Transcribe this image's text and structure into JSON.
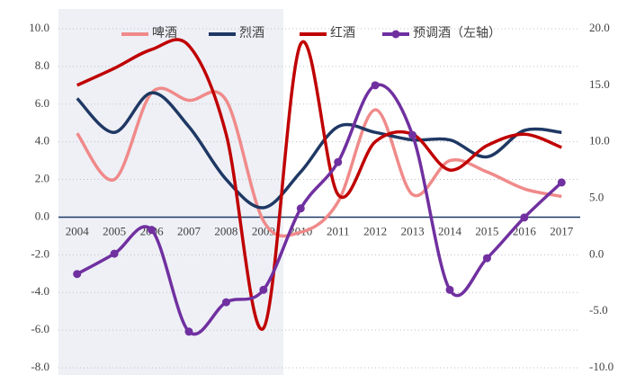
{
  "chart_data": {
    "type": "line",
    "categories": [
      "2004",
      "2005",
      "2006",
      "2007",
      "2008",
      "2009",
      "2010",
      "2011",
      "2012",
      "2013",
      "2014",
      "2015",
      "2016",
      "2017"
    ],
    "series": [
      {
        "name": "啤酒",
        "color": "#f08a8a",
        "values": [
          4.45,
          2.0,
          6.6,
          6.2,
          6.2,
          -0.2,
          -0.8,
          0.8,
          5.7,
          1.2,
          3.0,
          2.4,
          1.5,
          1.1
        ]
      },
      {
        "name": "烈酒",
        "color": "#1f3864",
        "values": [
          6.3,
          4.5,
          6.6,
          4.8,
          2.0,
          0.5,
          2.4,
          4.8,
          4.5,
          4.1,
          4.1,
          3.2,
          4.6,
          4.5
        ]
      },
      {
        "name": "红酒",
        "color": "#c00000",
        "values": [
          7.0,
          7.9,
          8.9,
          9.1,
          4.4,
          -5.9,
          9.2,
          1.2,
          4.0,
          4.4,
          2.5,
          3.8,
          4.4,
          3.7
        ]
      },
      {
        "name": "预调酒（左轴）",
        "color": "#7030a0",
        "axis": "y2",
        "markers": true,
        "values": [
          -1.7,
          0.1,
          2.2,
          -6.8,
          -4.2,
          -3.1,
          4.1,
          8.2,
          15.0,
          10.6,
          -3.1,
          -0.3,
          3.3,
          6.4
        ]
      }
    ],
    "ylim": [
      -8,
      10
    ],
    "yticks": [
      {
        "value": -8,
        "label": "-8.0"
      },
      {
        "value": -6,
        "label": "-6.0"
      },
      {
        "value": -4,
        "label": "-4.0"
      },
      {
        "value": -2,
        "label": "-2.0"
      },
      {
        "value": 0,
        "label": "0.0"
      },
      {
        "value": 2,
        "label": "2.0"
      },
      {
        "value": 4,
        "label": "4.0"
      },
      {
        "value": 6,
        "label": "6.0"
      },
      {
        "value": 8,
        "label": "8.0"
      },
      {
        "value": 10,
        "label": "10.0"
      }
    ],
    "y2lim": [
      -10,
      20
    ],
    "y2ticks": [
      {
        "value": -10,
        "label": "-10.0"
      },
      {
        "value": -5,
        "label": "-5.0"
      },
      {
        "value": 0,
        "label": "0.0"
      },
      {
        "value": 5,
        "label": "5.0"
      },
      {
        "value": 10,
        "label": "10.0"
      },
      {
        "value": 15,
        "label": "15.0"
      },
      {
        "value": 20,
        "label": "20.0"
      }
    ],
    "grid": true,
    "legend": "top"
  }
}
